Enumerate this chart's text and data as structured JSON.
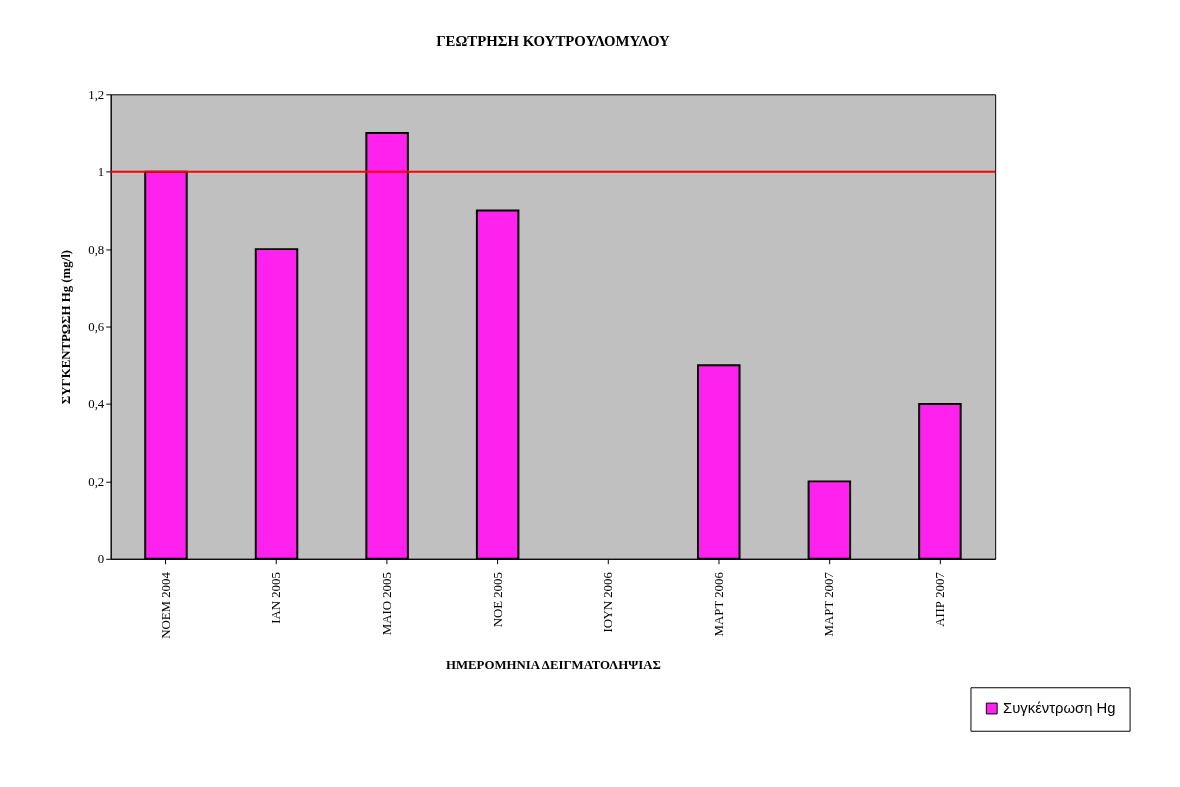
{
  "chart_data": {
    "type": "bar",
    "title": "ΓΕΩΤΡΗΣΗ ΚΟΥΤΡΟΥΛΟΜΥΛΟΥ",
    "xlabel": "ΗΜΕΡΟΜΗΝΙΑ ΔΕΙΓΜΑΤΟΛΗΨΙΑΣ",
    "ylabel": "ΣΥΓΚΕΝΤΡΩΣΗ Hg (mg/l)",
    "categories": [
      "ΝΟΕΜ 2004",
      "ΙΑΝ 2005",
      "ΜΑΙΟ 2005",
      "ΝΟΕ 2005",
      "ΙΟΥΝ 2006",
      "ΜΑΡΤ 2006",
      "ΜΑΡΤ 2007",
      "ΑΠΡ 2007"
    ],
    "series": [
      {
        "name": "Συγκέντρωση Hg",
        "color": "#ff22ee",
        "values": [
          1.0,
          0.8,
          1.1,
          0.9,
          null,
          0.5,
          0.2,
          0.4
        ]
      }
    ],
    "ylim": [
      0,
      1.2
    ],
    "yticks": [
      0,
      {
        "value": 0.2,
        "label": "0,2"
      },
      {
        "value": 0.4,
        "label": "0,4"
      },
      {
        "value": 0.6,
        "label": "0,6"
      },
      {
        "value": 0.8,
        "label": "0,8"
      },
      1,
      {
        "value": 1.2,
        "label": "1,2"
      }
    ],
    "ref_lines": [
      {
        "axis": "y",
        "value": 1,
        "color": "#ff0000"
      }
    ],
    "grid": false,
    "legend": "bottom right"
  }
}
